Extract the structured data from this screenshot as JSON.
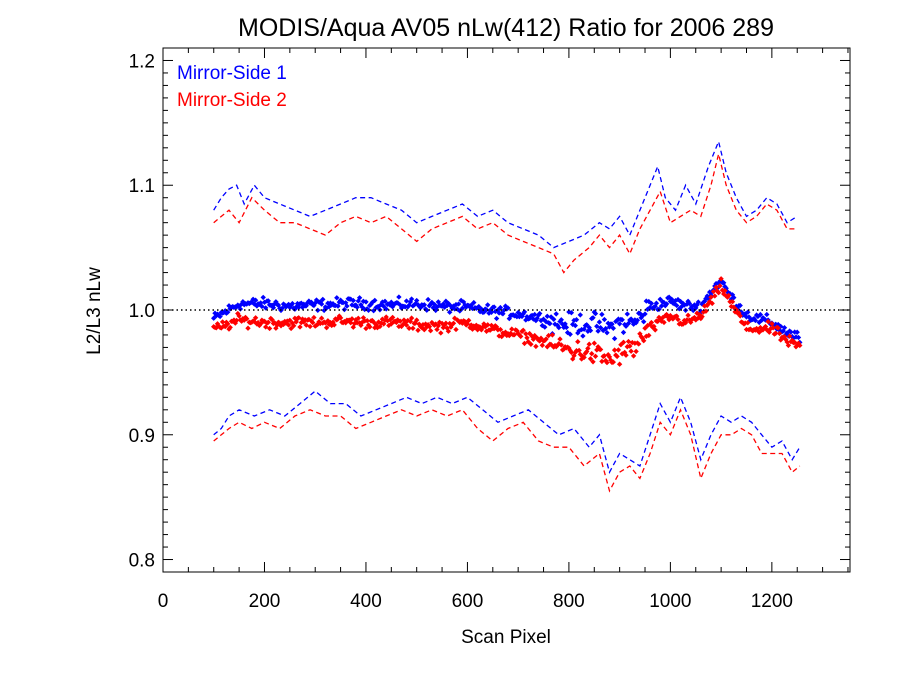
{
  "chart_data": {
    "type": "scatter",
    "title": "MODIS/Aqua AV05 nLw(412) Ratio for 2006 289",
    "xlabel": "Scan Pixel",
    "ylabel": "L2/L3 nLw",
    "xlim": [
      0,
      1354
    ],
    "ylim": [
      0.79,
      1.21
    ],
    "xticks": [
      0,
      200,
      400,
      600,
      800,
      1000,
      1200
    ],
    "xtick_labels": [
      "0",
      "200",
      "400",
      "600",
      "800",
      "1000",
      "1200"
    ],
    "yticks": [
      0.8,
      0.9,
      1.0,
      1.1,
      1.2
    ],
    "ytick_labels": [
      "0.8",
      "0.9",
      "1.0",
      "1.1",
      "1.2"
    ],
    "reference_line": 1.0,
    "legend_position": "top-left",
    "series": [
      {
        "name": "Mirror-Side 1",
        "color": "#0000ff",
        "mean": [
          [
            100,
            0.993
          ],
          [
            150,
            1.005
          ],
          [
            200,
            1.005
          ],
          [
            250,
            1.003
          ],
          [
            300,
            1.004
          ],
          [
            350,
            1.005
          ],
          [
            400,
            1.005
          ],
          [
            450,
            1.004
          ],
          [
            500,
            1.005
          ],
          [
            550,
            1.003
          ],
          [
            600,
            1.002
          ],
          [
            650,
            0.999
          ],
          [
            700,
            0.997
          ],
          [
            750,
            0.993
          ],
          [
            800,
            0.988
          ],
          [
            850,
            0.989
          ],
          [
            880,
            0.985
          ],
          [
            900,
            0.99
          ],
          [
            930,
            0.99
          ],
          [
            960,
            1.003
          ],
          [
            1000,
            1.007
          ],
          [
            1030,
            1.003
          ],
          [
            1060,
            1.003
          ],
          [
            1090,
            1.02
          ],
          [
            1100,
            1.023
          ],
          [
            1120,
            1.01
          ],
          [
            1150,
            0.996
          ],
          [
            1180,
            0.992
          ],
          [
            1200,
            0.99
          ],
          [
            1230,
            0.982
          ],
          [
            1255,
            0.977
          ]
        ],
        "upper": [
          [
            100,
            1.08
          ],
          [
            115,
            1.09
          ],
          [
            130,
            1.097
          ],
          [
            145,
            1.1
          ],
          [
            160,
            1.085
          ],
          [
            180,
            1.1
          ],
          [
            200,
            1.09
          ],
          [
            230,
            1.085
          ],
          [
            260,
            1.08
          ],
          [
            290,
            1.075
          ],
          [
            320,
            1.08
          ],
          [
            350,
            1.085
          ],
          [
            380,
            1.09
          ],
          [
            410,
            1.09
          ],
          [
            440,
            1.085
          ],
          [
            470,
            1.08
          ],
          [
            500,
            1.07
          ],
          [
            530,
            1.075
          ],
          [
            560,
            1.08
          ],
          [
            590,
            1.085
          ],
          [
            620,
            1.075
          ],
          [
            650,
            1.08
          ],
          [
            680,
            1.07
          ],
          [
            710,
            1.065
          ],
          [
            740,
            1.06
          ],
          [
            770,
            1.05
          ],
          [
            800,
            1.055
          ],
          [
            830,
            1.06
          ],
          [
            860,
            1.07
          ],
          [
            880,
            1.065
          ],
          [
            900,
            1.075
          ],
          [
            920,
            1.06
          ],
          [
            940,
            1.08
          ],
          [
            960,
            1.1
          ],
          [
            975,
            1.115
          ],
          [
            990,
            1.09
          ],
          [
            1010,
            1.08
          ],
          [
            1030,
            1.1
          ],
          [
            1050,
            1.085
          ],
          [
            1075,
            1.115
          ],
          [
            1095,
            1.135
          ],
          [
            1110,
            1.11
          ],
          [
            1130,
            1.09
          ],
          [
            1150,
            1.075
          ],
          [
            1170,
            1.08
          ],
          [
            1190,
            1.09
          ],
          [
            1210,
            1.085
          ],
          [
            1230,
            1.07
          ],
          [
            1250,
            1.075
          ]
        ],
        "lower": [
          [
            100,
            0.9
          ],
          [
            115,
            0.905
          ],
          [
            130,
            0.915
          ],
          [
            150,
            0.92
          ],
          [
            180,
            0.915
          ],
          [
            210,
            0.92
          ],
          [
            240,
            0.915
          ],
          [
            270,
            0.925
          ],
          [
            300,
            0.935
          ],
          [
            330,
            0.925
          ],
          [
            360,
            0.925
          ],
          [
            390,
            0.915
          ],
          [
            420,
            0.92
          ],
          [
            450,
            0.925
          ],
          [
            480,
            0.93
          ],
          [
            510,
            0.925
          ],
          [
            540,
            0.93
          ],
          [
            570,
            0.925
          ],
          [
            600,
            0.93
          ],
          [
            630,
            0.92
          ],
          [
            660,
            0.91
          ],
          [
            690,
            0.915
          ],
          [
            720,
            0.92
          ],
          [
            750,
            0.91
          ],
          [
            780,
            0.9
          ],
          [
            810,
            0.905
          ],
          [
            840,
            0.89
          ],
          [
            860,
            0.9
          ],
          [
            880,
            0.87
          ],
          [
            900,
            0.885
          ],
          [
            920,
            0.88
          ],
          [
            940,
            0.875
          ],
          [
            960,
            0.9
          ],
          [
            980,
            0.925
          ],
          [
            1000,
            0.91
          ],
          [
            1020,
            0.93
          ],
          [
            1040,
            0.91
          ],
          [
            1060,
            0.88
          ],
          [
            1080,
            0.9
          ],
          [
            1100,
            0.915
          ],
          [
            1120,
            0.91
          ],
          [
            1140,
            0.915
          ],
          [
            1160,
            0.91
          ],
          [
            1180,
            0.9
          ],
          [
            1200,
            0.89
          ],
          [
            1220,
            0.895
          ],
          [
            1240,
            0.88
          ],
          [
            1255,
            0.89
          ]
        ]
      },
      {
        "name": "Mirror-Side 2",
        "color": "#ff0000",
        "mean": [
          [
            100,
            0.984
          ],
          [
            150,
            0.992
          ],
          [
            200,
            0.99
          ],
          [
            250,
            0.99
          ],
          [
            300,
            0.99
          ],
          [
            350,
            0.991
          ],
          [
            400,
            0.99
          ],
          [
            450,
            0.99
          ],
          [
            500,
            0.988
          ],
          [
            550,
            0.987
          ],
          [
            600,
            0.99
          ],
          [
            650,
            0.984
          ],
          [
            700,
            0.98
          ],
          [
            750,
            0.975
          ],
          [
            800,
            0.968
          ],
          [
            850,
            0.965
          ],
          [
            880,
            0.96
          ],
          [
            900,
            0.965
          ],
          [
            930,
            0.97
          ],
          [
            960,
            0.985
          ],
          [
            1000,
            0.995
          ],
          [
            1030,
            0.99
          ],
          [
            1060,
            0.995
          ],
          [
            1090,
            1.013
          ],
          [
            1100,
            1.02
          ],
          [
            1120,
            1.005
          ],
          [
            1150,
            0.985
          ],
          [
            1180,
            0.985
          ],
          [
            1200,
            0.985
          ],
          [
            1230,
            0.975
          ],
          [
            1255,
            0.97
          ]
        ],
        "upper": [
          [
            100,
            1.07
          ],
          [
            115,
            1.075
          ],
          [
            130,
            1.08
          ],
          [
            150,
            1.07
          ],
          [
            175,
            1.09
          ],
          [
            200,
            1.08
          ],
          [
            230,
            1.07
          ],
          [
            260,
            1.07
          ],
          [
            290,
            1.065
          ],
          [
            320,
            1.06
          ],
          [
            350,
            1.07
          ],
          [
            380,
            1.075
          ],
          [
            410,
            1.07
          ],
          [
            440,
            1.075
          ],
          [
            470,
            1.065
          ],
          [
            500,
            1.055
          ],
          [
            530,
            1.065
          ],
          [
            560,
            1.07
          ],
          [
            590,
            1.075
          ],
          [
            620,
            1.065
          ],
          [
            650,
            1.07
          ],
          [
            680,
            1.06
          ],
          [
            710,
            1.055
          ],
          [
            740,
            1.05
          ],
          [
            770,
            1.045
          ],
          [
            790,
            1.03
          ],
          [
            810,
            1.04
          ],
          [
            840,
            1.05
          ],
          [
            860,
            1.06
          ],
          [
            880,
            1.05
          ],
          [
            900,
            1.06
          ],
          [
            920,
            1.045
          ],
          [
            940,
            1.065
          ],
          [
            960,
            1.08
          ],
          [
            980,
            1.095
          ],
          [
            1000,
            1.07
          ],
          [
            1020,
            1.075
          ],
          [
            1040,
            1.08
          ],
          [
            1060,
            1.075
          ],
          [
            1080,
            1.1
          ],
          [
            1095,
            1.125
          ],
          [
            1110,
            1.1
          ],
          [
            1130,
            1.08
          ],
          [
            1150,
            1.07
          ],
          [
            1170,
            1.075
          ],
          [
            1190,
            1.085
          ],
          [
            1210,
            1.08
          ],
          [
            1230,
            1.065
          ],
          [
            1250,
            1.065
          ]
        ],
        "lower": [
          [
            100,
            0.895
          ],
          [
            115,
            0.9
          ],
          [
            130,
            0.905
          ],
          [
            150,
            0.91
          ],
          [
            175,
            0.905
          ],
          [
            200,
            0.91
          ],
          [
            230,
            0.905
          ],
          [
            260,
            0.915
          ],
          [
            290,
            0.92
          ],
          [
            320,
            0.915
          ],
          [
            350,
            0.915
          ],
          [
            380,
            0.905
          ],
          [
            410,
            0.91
          ],
          [
            440,
            0.915
          ],
          [
            470,
            0.92
          ],
          [
            500,
            0.915
          ],
          [
            530,
            0.92
          ],
          [
            560,
            0.915
          ],
          [
            590,
            0.92
          ],
          [
            620,
            0.905
          ],
          [
            650,
            0.895
          ],
          [
            680,
            0.905
          ],
          [
            710,
            0.91
          ],
          [
            740,
            0.895
          ],
          [
            770,
            0.89
          ],
          [
            800,
            0.89
          ],
          [
            830,
            0.875
          ],
          [
            860,
            0.885
          ],
          [
            880,
            0.855
          ],
          [
            900,
            0.87
          ],
          [
            920,
            0.875
          ],
          [
            940,
            0.865
          ],
          [
            960,
            0.885
          ],
          [
            980,
            0.91
          ],
          [
            1000,
            0.9
          ],
          [
            1020,
            0.92
          ],
          [
            1040,
            0.9
          ],
          [
            1060,
            0.865
          ],
          [
            1080,
            0.885
          ],
          [
            1100,
            0.9
          ],
          [
            1120,
            0.9
          ],
          [
            1140,
            0.905
          ],
          [
            1160,
            0.9
          ],
          [
            1180,
            0.885
          ],
          [
            1200,
            0.885
          ],
          [
            1220,
            0.885
          ],
          [
            1240,
            0.87
          ],
          [
            1255,
            0.875
          ]
        ]
      }
    ]
  }
}
